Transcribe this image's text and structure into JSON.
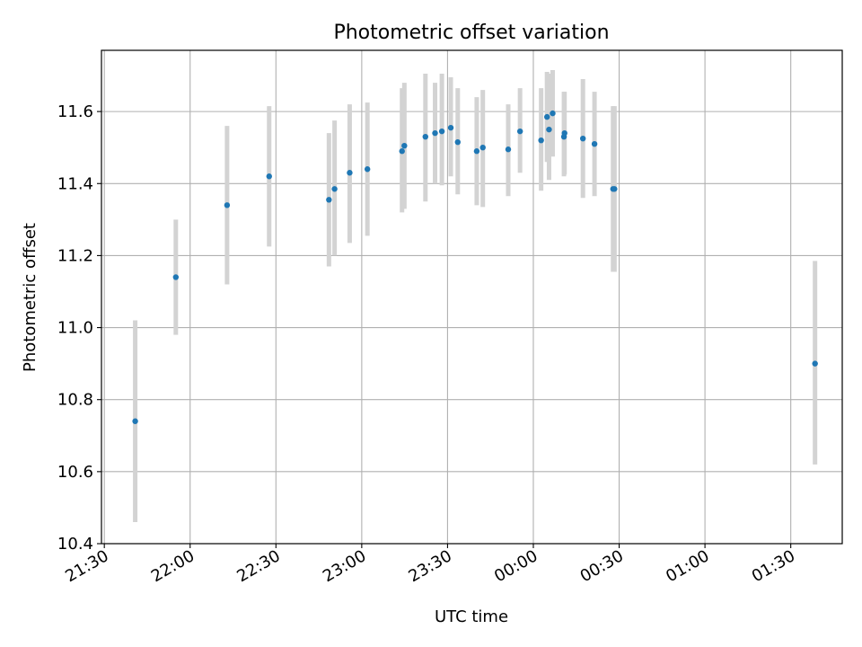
{
  "chart_data": {
    "type": "scatter",
    "title": "Photometric offset variation",
    "xlabel": "UTC time",
    "ylabel": "Photometric offset",
    "grid": true,
    "x_range": [
      "21:29",
      "01:48"
    ],
    "y_range": [
      10.4,
      11.77
    ],
    "x_ticks": [
      "21:30",
      "22:00",
      "22:30",
      "23:00",
      "23:30",
      "00:00",
      "00:30",
      "01:00",
      "01:30"
    ],
    "y_ticks": [
      "10.4",
      "10.6",
      "10.8",
      "11.0",
      "11.2",
      "11.4",
      "11.6"
    ],
    "colors": {
      "points": "#1f77b4",
      "errorbars": "#d3d3d3",
      "grid": "#b0b0b0"
    },
    "points": [
      {
        "t": "21:40:48",
        "y": 10.74,
        "lo": 10.46,
        "hi": 11.02
      },
      {
        "t": "21:55:00",
        "y": 11.14,
        "lo": 10.98,
        "hi": 11.3
      },
      {
        "t": "22:12:55",
        "y": 11.34,
        "lo": 11.12,
        "hi": 11.56
      },
      {
        "t": "22:27:38",
        "y": 11.42,
        "lo": 11.225,
        "hi": 11.615
      },
      {
        "t": "22:48:32",
        "y": 11.355,
        "lo": 11.17,
        "hi": 11.54
      },
      {
        "t": "22:50:30",
        "y": 11.385,
        "lo": 11.2,
        "hi": 11.575
      },
      {
        "t": "22:55:47",
        "y": 11.43,
        "lo": 11.235,
        "hi": 11.62
      },
      {
        "t": "23:01:59",
        "y": 11.44,
        "lo": 11.255,
        "hi": 11.625
      },
      {
        "t": "23:14:05",
        "y": 11.49,
        "lo": 11.32,
        "hi": 11.665
      },
      {
        "t": "23:14:54",
        "y": 11.505,
        "lo": 11.33,
        "hi": 11.68
      },
      {
        "t": "23:22:16",
        "y": 11.53,
        "lo": 11.35,
        "hi": 11.705
      },
      {
        "t": "23:25:38",
        "y": 11.54,
        "lo": 11.4,
        "hi": 11.68
      },
      {
        "t": "23:28:01",
        "y": 11.545,
        "lo": 11.395,
        "hi": 11.705
      },
      {
        "t": "23:31:08",
        "y": 11.555,
        "lo": 11.42,
        "hi": 11.695
      },
      {
        "t": "23:33:34",
        "y": 11.515,
        "lo": 11.37,
        "hi": 11.665
      },
      {
        "t": "23:40:12",
        "y": 11.49,
        "lo": 11.34,
        "hi": 11.64
      },
      {
        "t": "23:42:20",
        "y": 11.5,
        "lo": 11.335,
        "hi": 11.66
      },
      {
        "t": "23:51:13",
        "y": 11.495,
        "lo": 11.365,
        "hi": 11.62
      },
      {
        "t": "23:55:21",
        "y": 11.545,
        "lo": 11.43,
        "hi": 11.665
      },
      {
        "t": "00:02:43",
        "y": 11.52,
        "lo": 11.38,
        "hi": 11.665
      },
      {
        "t": "00:04:47",
        "y": 11.585,
        "lo": 11.46,
        "hi": 11.71
      },
      {
        "t": "00:05:29",
        "y": 11.55,
        "lo": 11.41,
        "hi": 11.705
      },
      {
        "t": "00:06:45",
        "y": 11.595,
        "lo": 11.475,
        "hi": 11.715
      },
      {
        "t": "00:10:42",
        "y": 11.53,
        "lo": 11.42,
        "hi": 11.655
      },
      {
        "t": "00:10:54",
        "y": 11.54,
        "lo": 11.425,
        "hi": 11.655
      },
      {
        "t": "00:17:20",
        "y": 11.525,
        "lo": 11.36,
        "hi": 11.69
      },
      {
        "t": "00:21:23",
        "y": 11.51,
        "lo": 11.365,
        "hi": 11.655
      },
      {
        "t": "00:27:52",
        "y": 11.385,
        "lo": 11.155,
        "hi": 11.615
      },
      {
        "t": "00:28:22",
        "y": 11.385,
        "lo": 11.155,
        "hi": 11.615
      },
      {
        "t": "01:38:29",
        "y": 10.9,
        "lo": 10.62,
        "hi": 11.185
      }
    ]
  }
}
